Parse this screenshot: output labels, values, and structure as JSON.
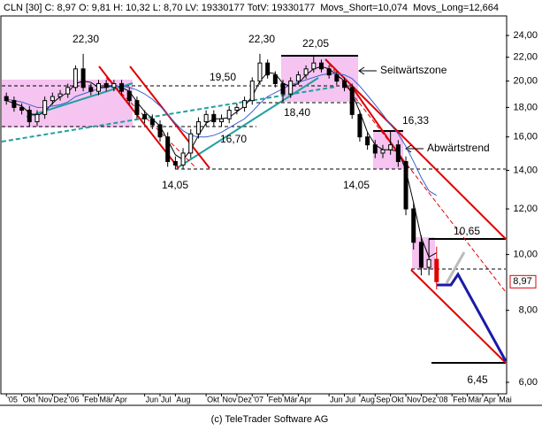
{
  "chart_data": {
    "type": "candlestick",
    "header_quote": "CLN [30] C: 8,97 O: 9,81 H: 10,32 L: 8,70 LV: 19330177 TotV: 19330177",
    "header_short": "Movs_Short=10,074",
    "header_long": "Movs_Long=12,664",
    "footer": "(c) TeleTrader Software AG",
    "log_scale": true,
    "grid": false,
    "ylim": [
      5.73,
      25.95
    ],
    "yticks": [
      {
        "value": 6,
        "label": "6,00"
      },
      {
        "value": 8,
        "label": "8,00"
      },
      {
        "value": 10,
        "label": "10,00"
      },
      {
        "value": 12,
        "label": "12,00"
      },
      {
        "value": 14,
        "label": "14,00"
      },
      {
        "value": 16,
        "label": "16,00"
      },
      {
        "value": 18,
        "label": "18,00"
      },
      {
        "value": 20,
        "label": "20,00"
      },
      {
        "value": 22,
        "label": "22,00"
      },
      {
        "value": 24,
        "label": "24,00"
      }
    ],
    "xlim": [
      -0.3,
      32.5
    ],
    "xticks": [
      {
        "value": 0,
        "label": "'05"
      },
      {
        "value": 1,
        "label": "Okt"
      },
      {
        "value": 2,
        "label": "Nov"
      },
      {
        "value": 3,
        "label": "Dez"
      },
      {
        "value": 4,
        "label": "'06"
      },
      {
        "value": 5,
        "label": "Feb"
      },
      {
        "value": 6,
        "label": "Mär"
      },
      {
        "value": 7,
        "label": "Apr"
      },
      {
        "value": 9,
        "label": "Jun"
      },
      {
        "value": 10,
        "label": "Jul"
      },
      {
        "value": 11,
        "label": "Aug"
      },
      {
        "value": 13,
        "label": "Okt"
      },
      {
        "value": 14,
        "label": "Nov"
      },
      {
        "value": 15,
        "label": "Dez"
      },
      {
        "value": 16,
        "label": "'07"
      },
      {
        "value": 17,
        "label": "Feb"
      },
      {
        "value": 18,
        "label": "Mär"
      },
      {
        "value": 19,
        "label": "Apr"
      },
      {
        "value": 21,
        "label": "Jun"
      },
      {
        "value": 22,
        "label": "Jul"
      },
      {
        "value": 23,
        "label": "Aug"
      },
      {
        "value": 24,
        "label": "Sep"
      },
      {
        "value": 25,
        "label": "Okt"
      },
      {
        "value": 26,
        "label": "Nov"
      },
      {
        "value": 27,
        "label": "Dez"
      },
      {
        "value": 28,
        "label": "'08"
      },
      {
        "value": 29,
        "label": "Feb"
      },
      {
        "value": 30,
        "label": "Mär"
      },
      {
        "value": 31,
        "label": "Apr"
      },
      {
        "value": 32,
        "label": "Mai"
      }
    ],
    "x": [
      0,
      0.5,
      1,
      1.5,
      2,
      2.5,
      3,
      3.5,
      4,
      4.5,
      5,
      5.5,
      6,
      6.5,
      7,
      7.5,
      8,
      8.5,
      9,
      9.5,
      10,
      10.5,
      11,
      11.5,
      12,
      12.5,
      13,
      13.5,
      14,
      14.5,
      15,
      15.5,
      16,
      16.5,
      17,
      17.5,
      18,
      18.5,
      19,
      19.5,
      20,
      20.5,
      21,
      21.5,
      22,
      22.5,
      23,
      23.5,
      24,
      24.5,
      25,
      25.5,
      26,
      26.5,
      27,
      27.5,
      28
    ],
    "candles": {
      "up_color": "#ffffff",
      "down_color": "#000000",
      "last_color": "#e00000",
      "open": [
        18.8,
        18.5,
        18.0,
        17.8,
        17.0,
        17.5,
        18.5,
        18.8,
        19.0,
        19.5,
        21.0,
        19.5,
        19.2,
        19.8,
        19.5,
        19.8,
        19.2,
        18.5,
        17.5,
        17.2,
        16.8,
        16.0,
        14.5,
        14.3,
        15.0,
        16.2,
        17.0,
        17.5,
        17.0,
        17.2,
        17.8,
        18.0,
        18.5,
        20.0,
        21.5,
        20.5,
        19.8,
        19.0,
        20.0,
        20.5,
        21.0,
        21.5,
        21.0,
        20.5,
        20.0,
        19.5,
        17.5,
        16.0,
        15.5,
        15.0,
        15.2,
        15.5,
        14.5,
        12.0,
        10.5,
        9.5,
        9.81
      ],
      "high": [
        19.1,
        18.8,
        18.3,
        18.1,
        17.8,
        18.8,
        19.1,
        19.3,
        19.8,
        21.3,
        22.3,
        19.8,
        20.1,
        20.1,
        20.1,
        20.1,
        19.5,
        18.8,
        17.8,
        17.5,
        17.1,
        16.3,
        14.8,
        15.3,
        16.5,
        17.3,
        17.8,
        17.8,
        17.5,
        18.1,
        18.3,
        18.8,
        20.3,
        22.3,
        21.8,
        20.8,
        20.1,
        20.3,
        20.8,
        21.3,
        22.05,
        21.8,
        21.3,
        20.8,
        20.3,
        19.8,
        17.8,
        16.3,
        15.8,
        15.5,
        16.33,
        15.8,
        14.8,
        12.3,
        10.8,
        10.65,
        10.32
      ],
      "low": [
        18.2,
        17.7,
        17.5,
        16.7,
        16.7,
        17.2,
        18.2,
        18.5,
        18.7,
        19.2,
        19.2,
        18.9,
        18.9,
        19.2,
        19.2,
        18.9,
        18.2,
        17.2,
        16.9,
        16.5,
        15.7,
        14.2,
        14.05,
        14.1,
        14.7,
        15.9,
        16.7,
        16.7,
        16.7,
        16.9,
        17.5,
        17.7,
        18.2,
        19.7,
        20.2,
        19.5,
        18.4,
        18.7,
        19.7,
        20.2,
        20.7,
        20.7,
        20.2,
        19.7,
        19.2,
        17.2,
        15.7,
        15.2,
        14.7,
        14.7,
        14.9,
        14.2,
        11.7,
        10.2,
        9.2,
        9.2,
        8.7
      ],
      "close": [
        18.5,
        18.0,
        17.8,
        17.0,
        17.5,
        18.5,
        18.8,
        19.0,
        19.5,
        21.0,
        19.5,
        19.2,
        19.8,
        19.5,
        19.8,
        19.2,
        18.5,
        17.5,
        17.2,
        16.8,
        16.0,
        14.5,
        14.3,
        15.0,
        16.2,
        17.0,
        17.5,
        17.0,
        17.2,
        17.8,
        18.0,
        18.5,
        20.0,
        21.5,
        20.5,
        19.8,
        19.0,
        20.0,
        20.5,
        21.0,
        21.5,
        21.0,
        20.5,
        20.0,
        19.5,
        17.5,
        16.0,
        15.5,
        15.0,
        15.2,
        15.5,
        14.5,
        12.0,
        10.5,
        9.5,
        9.8,
        8.97
      ]
    },
    "series": [
      {
        "color": "#000000",
        "values": [
          18.5,
          18.3,
          18.1,
          17.6,
          17.4,
          17.7,
          18.3,
          18.8,
          19.1,
          19.8,
          20.0,
          19.9,
          19.5,
          19.5,
          19.7,
          19.5,
          19.2,
          18.4,
          17.7,
          17.2,
          16.7,
          15.8,
          14.9,
          14.6,
          15.2,
          16.1,
          16.9,
          17.2,
          17.2,
          17.3,
          17.7,
          18.1,
          18.8,
          20.0,
          20.7,
          20.6,
          19.8,
          19.6,
          19.8,
          20.5,
          21.0,
          21.2,
          21.0,
          20.5,
          20.0,
          19.0,
          17.7,
          16.3,
          15.5,
          15.2,
          15.2,
          15.1,
          14.0,
          12.3,
          10.7,
          9.9,
          10.07
        ]
      },
      {
        "color": "#3a5fcd",
        "values": [
          18.6,
          18.5,
          18.4,
          18.2,
          18.0,
          18.0,
          18.1,
          18.2,
          18.4,
          18.8,
          19.0,
          19.2,
          19.4,
          19.5,
          19.6,
          19.6,
          19.5,
          19.3,
          19.0,
          18.6,
          18.1,
          17.5,
          16.9,
          16.4,
          16.1,
          16.0,
          16.0,
          16.1,
          16.3,
          16.6,
          16.9,
          17.2,
          17.7,
          18.3,
          18.8,
          19.1,
          19.4,
          19.7,
          19.9,
          20.1,
          20.3,
          20.5,
          20.6,
          20.6,
          20.5,
          20.2,
          19.6,
          18.9,
          18.2,
          17.5,
          16.8,
          16.2,
          15.4,
          14.5,
          13.6,
          12.9,
          12.66
        ]
      }
    ],
    "last_label": "8,97",
    "annotations": [
      "22,30",
      "22,30",
      "19,50",
      "22,05",
      "18,40",
      "16,70",
      "14,05",
      "14,05",
      "16,33",
      "10,65",
      "6,45",
      "Seitwärtszone",
      "Abwärtstrend"
    ]
  }
}
